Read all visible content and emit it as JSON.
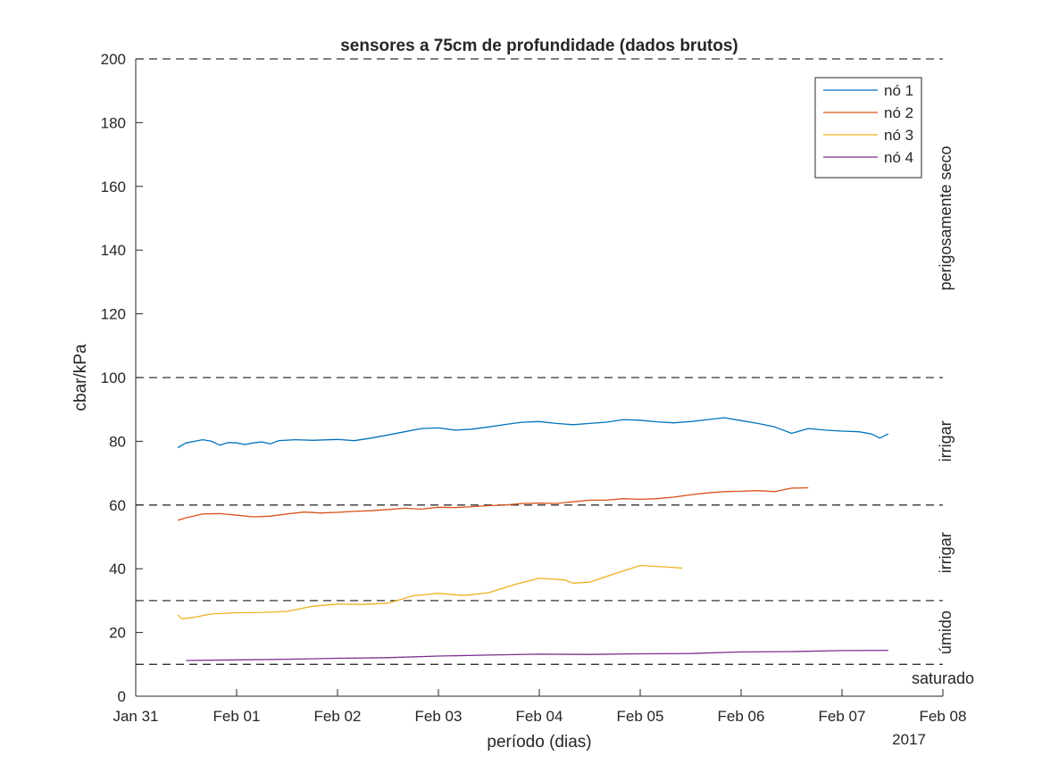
{
  "chart_data": {
    "type": "line",
    "title": "sensores a 75cm de profundidade (dados brutos)",
    "xlabel": "período (dias)",
    "ylabel": "cbar/kPa",
    "year_label": "2017",
    "x_range": [
      "2017-01-31",
      "2017-02-08"
    ],
    "ylim": [
      0,
      200
    ],
    "x_tick_labels": [
      "Jan 31",
      "Feb 01",
      "Feb 02",
      "Feb 03",
      "Feb 04",
      "Feb 05",
      "Feb 06",
      "Feb 07",
      "Feb 08"
    ],
    "y_ticks": [
      0,
      20,
      40,
      60,
      80,
      100,
      120,
      140,
      160,
      180,
      200
    ],
    "grid": false,
    "legend_position": "top-right",
    "thresholds": [
      {
        "value": 200
      },
      {
        "value": 100
      },
      {
        "value": 60
      },
      {
        "value": 30
      },
      {
        "value": 10
      }
    ],
    "zone_labels": [
      {
        "text": "perigosamente seco",
        "from": 100,
        "to": 200
      },
      {
        "text": "irrigar",
        "from": 60,
        "to": 100
      },
      {
        "text": "irrigar",
        "from": 30,
        "to": 60
      },
      {
        "text": "úmido",
        "from": 10,
        "to": 30
      },
      {
        "text": "saturado",
        "from": 0,
        "to": 10
      }
    ],
    "series": [
      {
        "name": "nó 1",
        "color": "#0072BD",
        "points": [
          [
            "2017-01-31 10:00",
            78.0
          ],
          [
            "2017-01-31 12:00",
            79.5
          ],
          [
            "2017-01-31 14:00",
            80.0
          ],
          [
            "2017-01-31 16:00",
            80.5
          ],
          [
            "2017-01-31 18:00",
            80.0
          ],
          [
            "2017-01-31 20:00",
            78.8
          ],
          [
            "2017-01-31 22:00",
            79.6
          ],
          [
            "2017-02-01 00:00",
            79.5
          ],
          [
            "2017-02-01 02:00",
            79.0
          ],
          [
            "2017-02-01 04:00",
            79.5
          ],
          [
            "2017-02-01 06:00",
            79.8
          ],
          [
            "2017-02-01 08:00",
            79.2
          ],
          [
            "2017-02-01 10:00",
            80.2
          ],
          [
            "2017-02-01 14:00",
            80.5
          ],
          [
            "2017-02-01 18:00",
            80.3
          ],
          [
            "2017-02-02 00:00",
            80.6
          ],
          [
            "2017-02-02 04:00",
            80.2
          ],
          [
            "2017-02-02 08:00",
            81.0
          ],
          [
            "2017-02-02 12:00",
            82.0
          ],
          [
            "2017-02-02 16:00",
            83.0
          ],
          [
            "2017-02-02 20:00",
            84.0
          ],
          [
            "2017-02-03 00:00",
            84.2
          ],
          [
            "2017-02-03 04:00",
            83.5
          ],
          [
            "2017-02-03 08:00",
            83.8
          ],
          [
            "2017-02-03 12:00",
            84.5
          ],
          [
            "2017-02-03 16:00",
            85.3
          ],
          [
            "2017-02-03 20:00",
            86.0
          ],
          [
            "2017-02-04 00:00",
            86.2
          ],
          [
            "2017-02-04 04:00",
            85.6
          ],
          [
            "2017-02-04 08:00",
            85.2
          ],
          [
            "2017-02-04 12:00",
            85.6
          ],
          [
            "2017-02-04 16:00",
            86.0
          ],
          [
            "2017-02-04 20:00",
            86.8
          ],
          [
            "2017-02-05 00:00",
            86.6
          ],
          [
            "2017-02-05 04:00",
            86.1
          ],
          [
            "2017-02-05 08:00",
            85.8
          ],
          [
            "2017-02-05 12:00",
            86.2
          ],
          [
            "2017-02-05 16:00",
            86.8
          ],
          [
            "2017-02-05 20:00",
            87.4
          ],
          [
            "2017-02-06 00:00",
            86.5
          ],
          [
            "2017-02-06 04:00",
            85.6
          ],
          [
            "2017-02-06 08:00",
            84.5
          ],
          [
            "2017-02-06 12:00",
            82.5
          ],
          [
            "2017-02-06 16:00",
            84.0
          ],
          [
            "2017-02-06 20:00",
            83.5
          ],
          [
            "2017-02-07 00:00",
            83.2
          ],
          [
            "2017-02-07 04:00",
            83.0
          ],
          [
            "2017-02-07 07:00",
            82.3
          ],
          [
            "2017-02-07 09:00",
            81.0
          ],
          [
            "2017-02-07 11:00",
            82.3
          ]
        ]
      },
      {
        "name": "nó 2",
        "color": "#D95319",
        "points": [
          [
            "2017-01-31 10:00",
            55.2
          ],
          [
            "2017-01-31 12:00",
            56.0
          ],
          [
            "2017-01-31 16:00",
            57.2
          ],
          [
            "2017-01-31 20:00",
            57.3
          ],
          [
            "2017-02-01 00:00",
            56.8
          ],
          [
            "2017-02-01 04:00",
            56.3
          ],
          [
            "2017-02-01 08:00",
            56.5
          ],
          [
            "2017-02-01 12:00",
            57.2
          ],
          [
            "2017-02-01 16:00",
            57.8
          ],
          [
            "2017-02-01 20:00",
            57.5
          ],
          [
            "2017-02-02 00:00",
            57.7
          ],
          [
            "2017-02-02 04:00",
            58.0
          ],
          [
            "2017-02-02 08:00",
            58.2
          ],
          [
            "2017-02-02 12:00",
            58.6
          ],
          [
            "2017-02-02 16:00",
            59.0
          ],
          [
            "2017-02-02 20:00",
            58.7
          ],
          [
            "2017-02-03 00:00",
            59.3
          ],
          [
            "2017-02-03 04:00",
            59.2
          ],
          [
            "2017-02-03 08:00",
            59.5
          ],
          [
            "2017-02-03 12:00",
            59.8
          ],
          [
            "2017-02-03 16:00",
            60.0
          ],
          [
            "2017-02-03 20:00",
            60.5
          ],
          [
            "2017-02-04 00:00",
            60.6
          ],
          [
            "2017-02-04 04:00",
            60.5
          ],
          [
            "2017-02-04 08:00",
            61.0
          ],
          [
            "2017-02-04 12:00",
            61.5
          ],
          [
            "2017-02-04 16:00",
            61.5
          ],
          [
            "2017-02-04 20:00",
            62.0
          ],
          [
            "2017-02-05 00:00",
            61.8
          ],
          [
            "2017-02-05 04:00",
            62.0
          ],
          [
            "2017-02-05 08:00",
            62.5
          ],
          [
            "2017-02-05 12:00",
            63.2
          ],
          [
            "2017-02-05 16:00",
            63.8
          ],
          [
            "2017-02-05 20:00",
            64.2
          ],
          [
            "2017-02-06 00:00",
            64.3
          ],
          [
            "2017-02-06 04:00",
            64.5
          ],
          [
            "2017-02-06 08:00",
            64.2
          ],
          [
            "2017-02-06 12:00",
            65.3
          ],
          [
            "2017-02-06 16:00",
            65.4
          ]
        ]
      },
      {
        "name": "nó 3",
        "color": "#EDB120",
        "points": [
          [
            "2017-01-31 10:00",
            25.5
          ],
          [
            "2017-01-31 11:00",
            24.3
          ],
          [
            "2017-01-31 14:00",
            24.8
          ],
          [
            "2017-01-31 18:00",
            25.8
          ],
          [
            "2017-02-01 00:00",
            26.2
          ],
          [
            "2017-02-01 06:00",
            26.3
          ],
          [
            "2017-02-01 12:00",
            26.6
          ],
          [
            "2017-02-01 18:00",
            28.2
          ],
          [
            "2017-02-02 00:00",
            28.9
          ],
          [
            "2017-02-02 06:00",
            28.8
          ],
          [
            "2017-02-02 12:00",
            29.2
          ],
          [
            "2017-02-02 18:00",
            31.5
          ],
          [
            "2017-02-03 00:00",
            32.3
          ],
          [
            "2017-02-03 06:00",
            31.6
          ],
          [
            "2017-02-03 12:00",
            32.5
          ],
          [
            "2017-02-03 18:00",
            35.0
          ],
          [
            "2017-02-04 00:00",
            37.0
          ],
          [
            "2017-02-04 06:00",
            36.5
          ],
          [
            "2017-02-04 08:00",
            35.5
          ],
          [
            "2017-02-04 12:00",
            35.8
          ],
          [
            "2017-02-04 18:00",
            38.5
          ],
          [
            "2017-02-05 00:00",
            41.0
          ],
          [
            "2017-02-05 06:00",
            40.6
          ],
          [
            "2017-02-05 10:00",
            40.2
          ]
        ]
      },
      {
        "name": "nó 4",
        "color": "#7E2F8E",
        "points": [
          [
            "2017-01-31 12:00",
            11.2
          ],
          [
            "2017-02-01 00:00",
            11.4
          ],
          [
            "2017-02-01 12:00",
            11.6
          ],
          [
            "2017-02-02 00:00",
            11.9
          ],
          [
            "2017-02-02 12:00",
            12.1
          ],
          [
            "2017-02-03 00:00",
            12.6
          ],
          [
            "2017-02-03 12:00",
            12.9
          ],
          [
            "2017-02-04 00:00",
            13.2
          ],
          [
            "2017-02-04 12:00",
            13.1
          ],
          [
            "2017-02-05 00:00",
            13.3
          ],
          [
            "2017-02-05 12:00",
            13.4
          ],
          [
            "2017-02-06 00:00",
            13.9
          ],
          [
            "2017-02-06 12:00",
            14.0
          ],
          [
            "2017-02-07 00:00",
            14.3
          ],
          [
            "2017-02-07 11:00",
            14.4
          ]
        ]
      }
    ]
  }
}
